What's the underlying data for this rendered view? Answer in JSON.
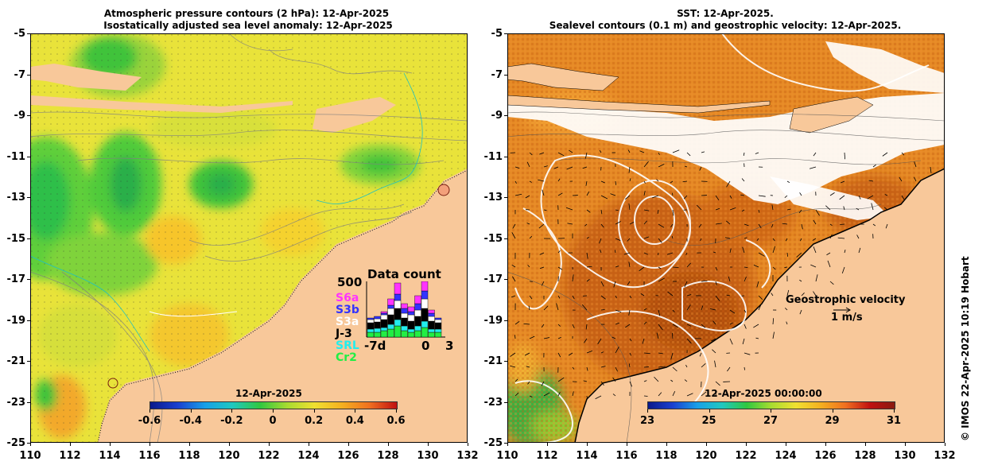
{
  "left_panel": {
    "title_line1": "Atmospheric pressure contours (2 hPa): 12-Apr-2025",
    "title_line2": "Isostatically adjusted sea level anomaly: 12-Apr-2025",
    "colorbar": {
      "date": "12-Apr-2025",
      "ticks": [
        "-0.6",
        "-0.4",
        "-0.2",
        "0",
        "0.2",
        "0.4",
        "0.6"
      ]
    }
  },
  "right_panel": {
    "title_line1": "SST: 12-Apr-2025.",
    "title_line2": "Sealevel contours (0.1 m) and geostrophic velocity: 12-Apr-2025.",
    "colorbar": {
      "date": "12-Apr-2025 00:00:00",
      "ticks": [
        "23",
        "25",
        "27",
        "29",
        "31"
      ]
    },
    "velocity_label": "Geostrophic velocity",
    "velocity_scale": "1 m/s"
  },
  "axes": {
    "y_ticks": [
      "-5",
      "-7",
      "-9",
      "-11",
      "-13",
      "-15",
      "-17",
      "-19",
      "-21",
      "-23",
      "-25"
    ],
    "x_ticks": [
      "110",
      "112",
      "114",
      "116",
      "118",
      "120",
      "122",
      "124",
      "126",
      "128",
      "130",
      "132"
    ]
  },
  "data_count": {
    "title": "Data count",
    "ymax": "500",
    "satellites": [
      {
        "name": "S6a",
        "color": "#ff33ff"
      },
      {
        "name": "S3b",
        "color": "#3333ff"
      },
      {
        "name": "S3a",
        "color": "#ffffff"
      },
      {
        "name": "J-3",
        "color": "#000000"
      },
      {
        "name": "SRL",
        "color": "#22eeee"
      },
      {
        "name": "Cr2",
        "color": "#22ee44"
      }
    ],
    "x_labels": [
      "-7d",
      "0",
      "3"
    ]
  },
  "credit": "© IMOS 22-Apr-2025 10:19 Hobart"
}
